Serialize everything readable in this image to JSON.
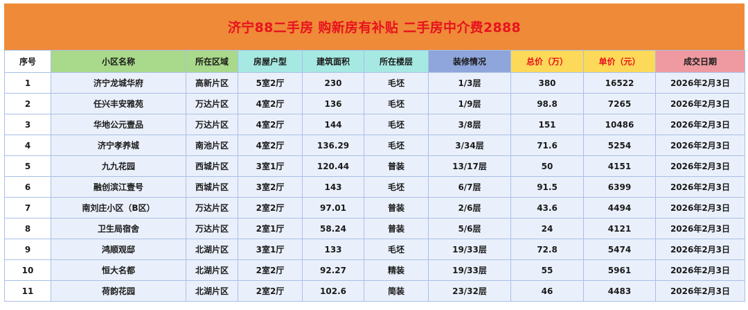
{
  "title": "济宁88二手房 购新房有补贴 二手房中介费2888",
  "colors": {
    "title_bg": "#ee8a38",
    "title_text": "#e8121f",
    "header_green": "#a9d98a",
    "header_teal": "#a6e8e2",
    "header_blue": "#8fa6dc",
    "header_yellow": "#fcd958",
    "header_pink": "#ef9aa0",
    "row_bg": "#eaf0fb"
  },
  "headers": [
    "序号",
    "小区名称",
    "所在区域",
    "房屋户型",
    "建筑面积",
    "所在楼层",
    "装修情况",
    "总价（万）",
    "单价（元）",
    "成交日期"
  ],
  "rows": [
    [
      "1",
      "济宁龙城华府",
      "高新片区",
      "5室2厅",
      "230",
      "毛坯",
      "1/3层",
      "380",
      "16522",
      "2026年2月3日"
    ],
    [
      "2",
      "任兴丰安雅苑",
      "万达片区",
      "4室2厅",
      "136",
      "毛坯",
      "1/9层",
      "98.8",
      "7265",
      "2026年2月3日"
    ],
    [
      "3",
      "华地公元壹品",
      "万达片区",
      "4室2厅",
      "144",
      "毛坯",
      "3/8层",
      "151",
      "10486",
      "2026年2月3日"
    ],
    [
      "4",
      "济宁孝养城",
      "南池片区",
      "4室2厅",
      "136.29",
      "毛坯",
      "3/34层",
      "71.6",
      "5254",
      "2026年2月3日"
    ],
    [
      "5",
      "九九花园",
      "西城片区",
      "3室1厅",
      "120.44",
      "普装",
      "13/17层",
      "50",
      "4151",
      "2026年2月3日"
    ],
    [
      "6",
      "融创滨江壹号",
      "西城片区",
      "3室2厅",
      "143",
      "毛坯",
      "6/7层",
      "91.5",
      "6399",
      "2026年2月3日"
    ],
    [
      "7",
      "南刘庄小区（B区）",
      "万达片区",
      "2室2厅",
      "97.01",
      "普装",
      "2/6层",
      "43.6",
      "4494",
      "2026年2月3日"
    ],
    [
      "8",
      "卫生局宿舍",
      "万达片区",
      "2室1厅",
      "58.24",
      "普装",
      "5/6层",
      "24",
      "4121",
      "2026年2月3日"
    ],
    [
      "9",
      "鸿顺观邸",
      "北湖片区",
      "3室1厅",
      "133",
      "毛坯",
      "19/33层",
      "72.8",
      "5474",
      "2026年2月3日"
    ],
    [
      "10",
      "恒大名都",
      "北湖片区",
      "2室2厅",
      "92.27",
      "精装",
      "19/33层",
      "55",
      "5961",
      "2026年2月3日"
    ],
    [
      "11",
      "荷韵花园",
      "北湖片区",
      "2室2厅",
      "102.6",
      "简装",
      "23/32层",
      "46",
      "4483",
      "2026年2月3日"
    ]
  ]
}
